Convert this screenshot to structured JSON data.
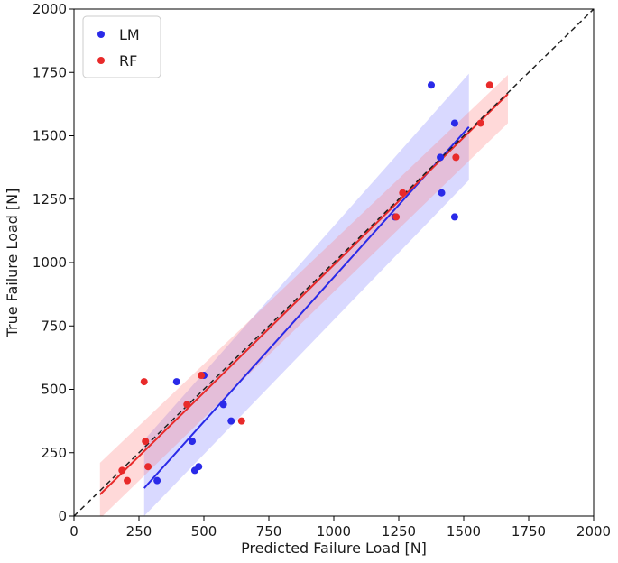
{
  "chart_data": {
    "type": "scatter",
    "xlabel": "Predicted Failure Load [N]",
    "ylabel": "True Failure Load [N]",
    "xlim": [
      0,
      2000
    ],
    "ylim": [
      0,
      2000
    ],
    "xticks": [
      "0",
      "250",
      "500",
      "750",
      "1000",
      "1250",
      "1500",
      "1750",
      "2000"
    ],
    "yticks": [
      "0",
      "250",
      "500",
      "750",
      "1000",
      "1250",
      "1500",
      "1750",
      "2000"
    ],
    "grid": false,
    "legend_position": "top-left",
    "identity_line": {
      "style": "dashed",
      "color": "#222222",
      "from": [
        0,
        0
      ],
      "to": [
        2000,
        2000
      ]
    },
    "series": [
      {
        "name": "LM",
        "color": "#2a2ae8",
        "band_color": "#8080ff",
        "points": [
          {
            "x": 320,
            "y": 140
          },
          {
            "x": 465,
            "y": 180
          },
          {
            "x": 480,
            "y": 195
          },
          {
            "x": 455,
            "y": 295
          },
          {
            "x": 605,
            "y": 375
          },
          {
            "x": 575,
            "y": 440
          },
          {
            "x": 395,
            "y": 530
          },
          {
            "x": 500,
            "y": 555
          },
          {
            "x": 1235,
            "y": 1180
          },
          {
            "x": 1465,
            "y": 1180
          },
          {
            "x": 1415,
            "y": 1275
          },
          {
            "x": 1410,
            "y": 1415
          },
          {
            "x": 1465,
            "y": 1550
          },
          {
            "x": 1375,
            "y": 1700
          }
        ],
        "fit": {
          "x": [
            270,
            1520
          ],
          "y": [
            110,
            1535
          ]
        },
        "band": [
          {
            "x": 270,
            "lo": 0,
            "hi": 300
          },
          {
            "x": 1520,
            "lo": 1325,
            "hi": 1745
          }
        ]
      },
      {
        "name": "RF",
        "color": "#e82a2a",
        "band_color": "#ff8080",
        "points": [
          {
            "x": 185,
            "y": 180
          },
          {
            "x": 205,
            "y": 140
          },
          {
            "x": 285,
            "y": 195
          },
          {
            "x": 275,
            "y": 295
          },
          {
            "x": 270,
            "y": 530
          },
          {
            "x": 435,
            "y": 440
          },
          {
            "x": 490,
            "y": 555
          },
          {
            "x": 645,
            "y": 375
          },
          {
            "x": 1240,
            "y": 1180
          },
          {
            "x": 1265,
            "y": 1275
          },
          {
            "x": 1470,
            "y": 1415
          },
          {
            "x": 1565,
            "y": 1550
          },
          {
            "x": 1600,
            "y": 1700
          }
        ],
        "fit": {
          "x": [
            100,
            1670
          ],
          "y": [
            85,
            1665
          ]
        },
        "band": [
          {
            "x": 100,
            "lo": -10,
            "hi": 210
          },
          {
            "x": 1670,
            "lo": 1550,
            "hi": 1740
          }
        ]
      }
    ]
  }
}
